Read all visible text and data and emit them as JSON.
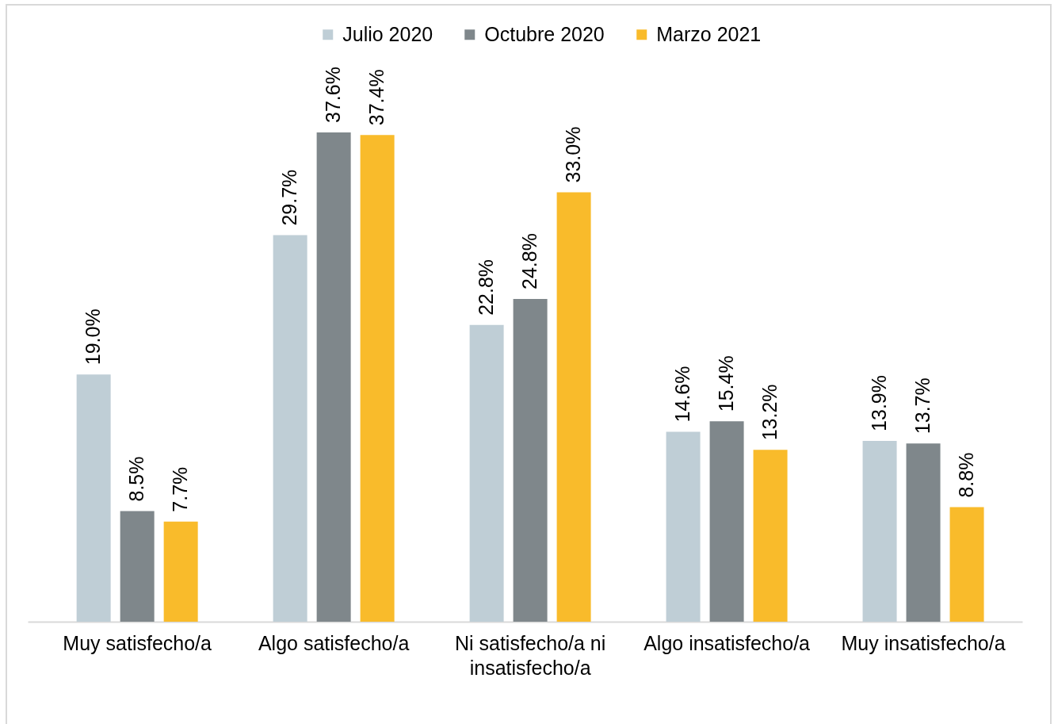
{
  "chart_data": {
    "type": "bar",
    "categories": [
      "Muy satisfecho/a",
      "Algo satisfecho/a",
      "Ni satisfecho/a ni insatisfecho/a",
      "Algo insatisfecho/a",
      "Muy insatisfecho/a"
    ],
    "series": [
      {
        "name": "Julio 2020",
        "color": "#bfced6",
        "values": [
          19.0,
          29.7,
          22.8,
          14.6,
          13.9
        ],
        "value_labels": [
          "19.0%",
          "29.7%",
          "22.8%",
          "14.6%",
          "13.9%"
        ]
      },
      {
        "name": "Octubre 2020",
        "color": "#7f878b",
        "values": [
          8.5,
          37.6,
          24.8,
          15.4,
          13.7
        ],
        "value_labels": [
          "8.5%",
          "37.6%",
          "24.8%",
          "15.4%",
          "13.7%"
        ]
      },
      {
        "name": "Marzo 2021",
        "color": "#f9bb2b",
        "values": [
          7.7,
          37.4,
          33.0,
          13.2,
          8.8
        ],
        "value_labels": [
          "7.7%",
          "37.4%",
          "33.0%",
          "13.2%",
          "8.8%"
        ]
      }
    ],
    "legend": "top",
    "tick_labels": "x"
  }
}
